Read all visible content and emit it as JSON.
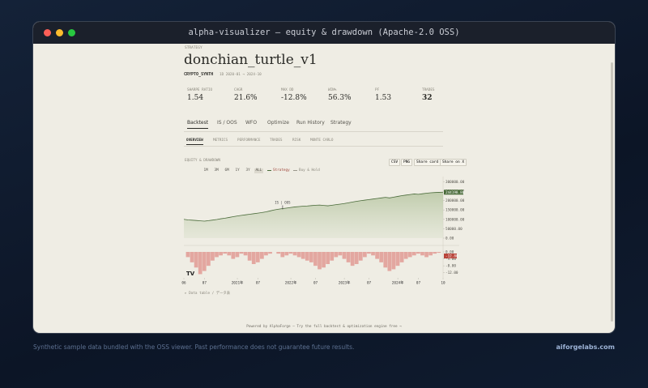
{
  "window": {
    "title": "alpha-visualizer — equity & drawdown (Apache-2.0 OSS)"
  },
  "header": {
    "kicker": "STRATEGY",
    "title": "donchian_turtle_v1",
    "symbol": "CRYPTO_SYNTH",
    "period": "1D  2020-01 → 2024-10"
  },
  "metrics": [
    {
      "label": "SHARPE RATIO",
      "value": "1.54"
    },
    {
      "label": "CAGR",
      "value": "21.6%"
    },
    {
      "label": "MAX DD",
      "value": "-12.8%"
    },
    {
      "label": "WIN%",
      "value": "56.3%"
    },
    {
      "label": "PF",
      "value": "1.53"
    },
    {
      "label": "TRADES",
      "value": "32"
    }
  ],
  "tabs": [
    "Backtest",
    "IS / OOS",
    "WFO",
    "Optimize",
    "Run History",
    "Strategy"
  ],
  "subtabs": [
    "OVERVIEW",
    "METRICS",
    "PERFORMANCE",
    "TRADES",
    "RISK",
    "MONTE CARLO"
  ],
  "panel": {
    "title": "EQUITY & DRAWDOWN",
    "buttons": [
      "CSV",
      "PNG",
      "Share card",
      "Share on X"
    ],
    "ranges": [
      "1M",
      "3M",
      "6M",
      "1Y",
      "3Y",
      "ALL"
    ],
    "legend": [
      "Strategy",
      "Buy & Hold"
    ],
    "data_table": "▸ Data table / データ表",
    "logo": "TV"
  },
  "chart_data": [
    {
      "type": "line",
      "annotation": "IS | OOS",
      "current_label": "244198.88",
      "ylim": [
        0,
        310000
      ],
      "xlim": [
        0,
        63
      ],
      "yticks": [
        {
          "value": 0,
          "label": "0.00"
        },
        {
          "value": 50000,
          "label": "50000.00"
        },
        {
          "value": 100000,
          "label": "100000.00"
        },
        {
          "value": 150000,
          "label": "150000.00"
        },
        {
          "value": 200000,
          "label": "200000.00"
        },
        {
          "value": 250000,
          "label": "250000.00"
        },
        {
          "value": 300000,
          "label": "300000.00"
        }
      ],
      "series": [
        {
          "name": "Strategy",
          "color": "#4a6b3a",
          "values": [
            100000,
            97000,
            95500,
            94000,
            92000,
            90500,
            93000,
            96000,
            99000,
            103000,
            106000,
            110000,
            114000,
            118000,
            121000,
            124000,
            127000,
            130000,
            133000,
            136000,
            140000,
            145000,
            150000,
            154000,
            157000,
            160000,
            163000,
            166000,
            168000,
            170000,
            171000,
            173000,
            175000,
            176000,
            174000,
            172000,
            175000,
            178000,
            181000,
            184000,
            188000,
            192000,
            196000,
            199000,
            202000,
            205000,
            208000,
            211000,
            214000,
            217000,
            214000,
            218000,
            222000,
            226000,
            229000,
            232000,
            235000,
            233000,
            236000,
            239000,
            241000,
            242500,
            243500,
            244198.88
          ]
        }
      ]
    },
    {
      "type": "bar",
      "current_label": "-12.80",
      "color": "#e3a7a0",
      "ylim": [
        -14,
        0
      ],
      "xlim": [
        0,
        63
      ],
      "yticks": [
        {
          "value": 0,
          "label": "0.00"
        },
        {
          "value": -4,
          "label": "-4.00"
        },
        {
          "value": -8,
          "label": "-8.00"
        },
        {
          "value": -12,
          "label": "-12.00"
        }
      ],
      "xticks": [
        {
          "value": 0,
          "label": "06"
        },
        {
          "value": 5,
          "label": "07"
        },
        {
          "value": 13,
          "label": "2021年"
        },
        {
          "value": 18,
          "label": "07"
        },
        {
          "value": 26,
          "label": "2022年"
        },
        {
          "value": 32,
          "label": "07"
        },
        {
          "value": 39,
          "label": "2023年"
        },
        {
          "value": 45,
          "label": "07"
        },
        {
          "value": 52,
          "label": "2024年"
        },
        {
          "value": 57,
          "label": "07"
        },
        {
          "value": 63,
          "label": "10"
        }
      ],
      "values": [
        0,
        -3,
        -6,
        -9,
        -12.8,
        -11,
        -8,
        -5,
        -3,
        -2,
        -1,
        -2,
        -4,
        -3,
        -1,
        -2,
        -5,
        -7,
        -6,
        -4,
        -2,
        -1,
        0,
        -1,
        -3,
        -2,
        -1,
        -2,
        -3,
        -4,
        -5,
        -6,
        -8,
        -10,
        -9,
        -7,
        -5,
        -3,
        -2,
        -4,
        -6,
        -8,
        -7,
        -5,
        -3,
        -1,
        -2,
        -4,
        -6,
        -9,
        -11,
        -10,
        -8,
        -6,
        -4,
        -3,
        -2,
        -1,
        -2,
        -3,
        -2,
        -1,
        -0.5,
        0
      ]
    }
  ],
  "footer": {
    "powered": "Powered by AlphaForge — Try the full backtest & optimization engine free →",
    "disclaimer": "Synthetic sample data bundled with the OSS viewer. Past performance does not guarantee future results.",
    "site": "aiforgelabs.com"
  }
}
